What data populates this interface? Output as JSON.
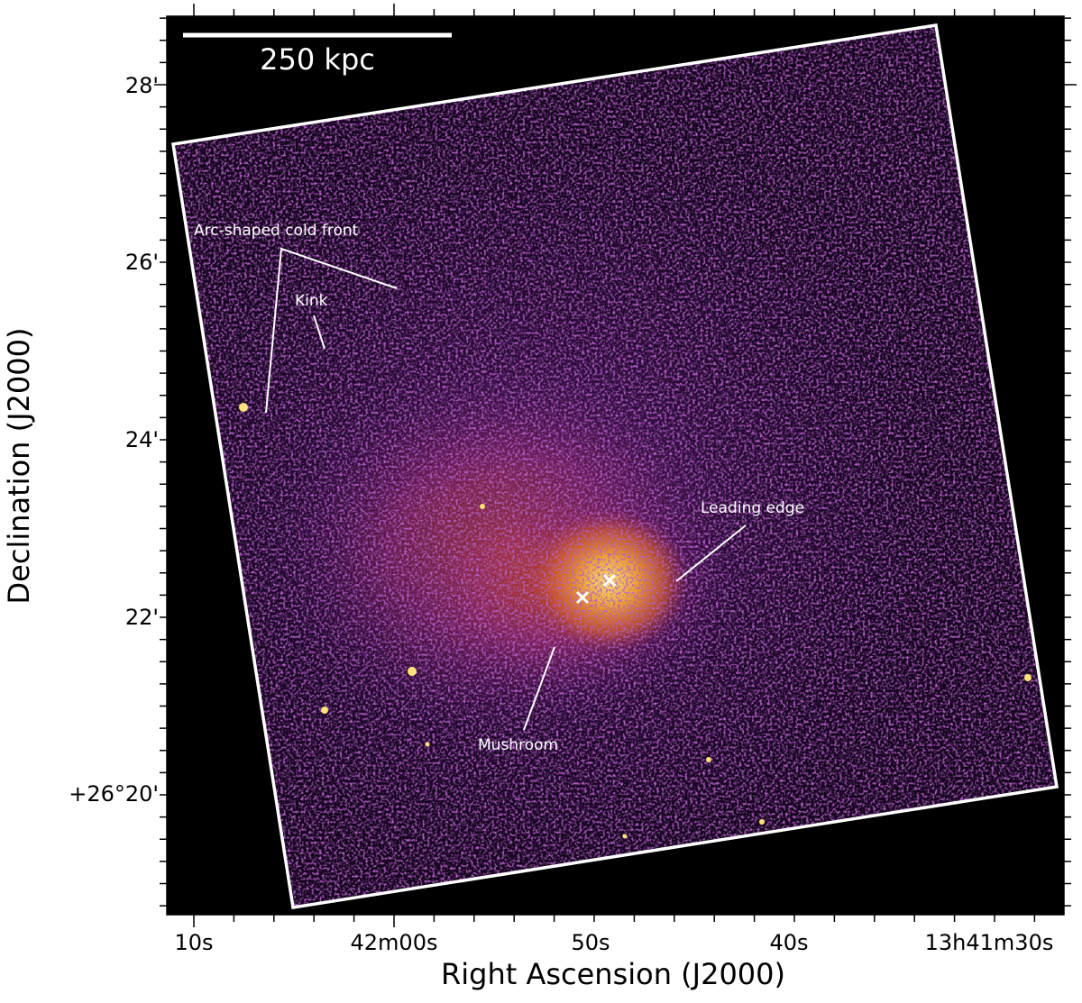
{
  "scale_bar": "250 kpc",
  "annotations": {
    "cold_front": "Arc-shaped cold front",
    "kink": "Kink",
    "leading_edge": "Leading edge",
    "mushroom": "Mushroom"
  },
  "axes": {
    "x": {
      "label": "Right Ascension (J2000)",
      "ticks": [
        "10s",
        "42m00s",
        "50s",
        "40s",
        "13h41m30s"
      ]
    },
    "y": {
      "label": "Declination (J2000)",
      "ticks": [
        "28'",
        "26'",
        "24'",
        "22'",
        "+26°20'"
      ]
    }
  }
}
